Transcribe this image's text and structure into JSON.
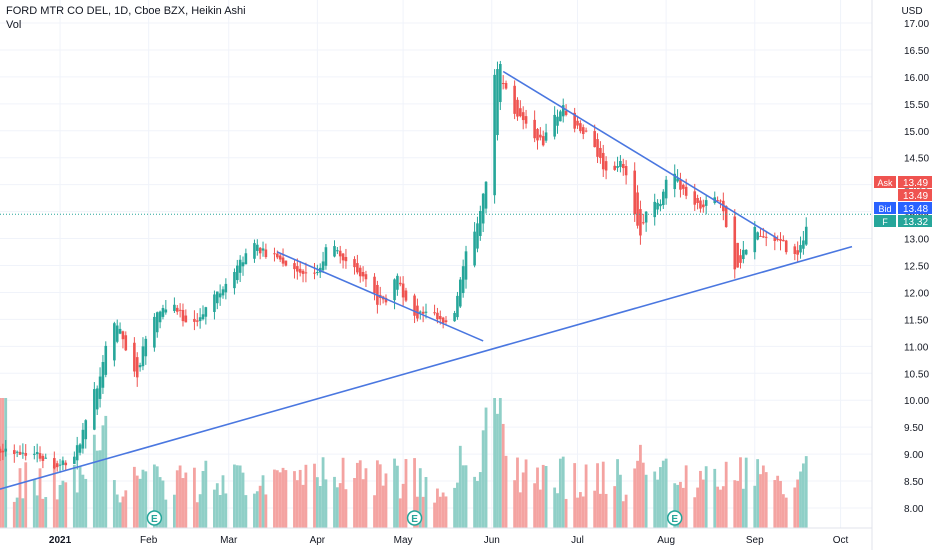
{
  "header": {
    "title": "FORD MTR CO DEL, 1D, Cboe BZX, Heikin Ashi",
    "vol_label": "Vol"
  },
  "colors": {
    "up": "#26a69a",
    "down": "#ef5350",
    "vol_up": "#8fcfc7",
    "vol_down": "#f4a3a1",
    "trendline": "#4a77e0",
    "ask": "#ef5350",
    "bid": "#2962ff",
    "last": "#26a69a",
    "axis_text": "#131722"
  },
  "chart_data": {
    "type": "candlestick",
    "currency": "USD",
    "y_ticks": [
      "17.00",
      "16.50",
      "16.00",
      "15.50",
      "15.00",
      "14.50",
      "14.00",
      "13.50",
      "13.00",
      "12.50",
      "12.00",
      "11.50",
      "11.00",
      "10.50",
      "10.00",
      "9.50",
      "9.00",
      "8.50",
      "8.00"
    ],
    "ylim": [
      7.8,
      17.1
    ],
    "x_ticks": [
      {
        "label": "2021",
        "day": 3
      },
      {
        "label": "Feb",
        "day": 34
      },
      {
        "label": "Mar",
        "day": 62
      },
      {
        "label": "Apr",
        "day": 93
      },
      {
        "label": "May",
        "day": 123
      },
      {
        "label": "Jun",
        "day": 154
      },
      {
        "label": "Jul",
        "day": 184
      },
      {
        "label": "Aug",
        "day": 215
      },
      {
        "label": "Sep",
        "day": 246
      },
      {
        "label": "Oct",
        "day": 276
      }
    ],
    "xlim": [
      -18,
      287
    ],
    "keypoints": [
      [
        -18,
        9.1
      ],
      [
        -5,
        9.0
      ],
      [
        2,
        8.8
      ],
      [
        8,
        8.9
      ],
      [
        12,
        9.5
      ],
      [
        15,
        10.0
      ],
      [
        18,
        10.6
      ],
      [
        20,
        11.3
      ],
      [
        24,
        11.3
      ],
      [
        27,
        10.9
      ],
      [
        30,
        10.5
      ],
      [
        33,
        11.1
      ],
      [
        37,
        11.6
      ],
      [
        42,
        11.8
      ],
      [
        47,
        11.5
      ],
      [
        52,
        11.5
      ],
      [
        57,
        11.9
      ],
      [
        62,
        12.2
      ],
      [
        66,
        12.5
      ],
      [
        71,
        12.9
      ],
      [
        75,
        12.7
      ],
      [
        79,
        12.7
      ],
      [
        83,
        12.5
      ],
      [
        88,
        12.3
      ],
      [
        94,
        12.4
      ],
      [
        97,
        12.9
      ],
      [
        101,
        12.7
      ],
      [
        105,
        12.5
      ],
      [
        110,
        12.3
      ],
      [
        114,
        11.9
      ],
      [
        117,
        11.8
      ],
      [
        121,
        12.3
      ],
      [
        123,
        12.0
      ],
      [
        126,
        11.6
      ],
      [
        129,
        11.6
      ],
      [
        133,
        11.6
      ],
      [
        138,
        11.4
      ],
      [
        141,
        11.6
      ],
      [
        145,
        12.6
      ],
      [
        149,
        13.2
      ],
      [
        152,
        14.0
      ],
      [
        155,
        15.6
      ],
      [
        157,
        16.1
      ],
      [
        160,
        15.6
      ],
      [
        164,
        15.3
      ],
      [
        168,
        15.0
      ],
      [
        172,
        14.8
      ],
      [
        176,
        15.2
      ],
      [
        179,
        15.4
      ],
      [
        183,
        15.1
      ],
      [
        188,
        14.9
      ],
      [
        191,
        14.6
      ],
      [
        195,
        14.2
      ],
      [
        199,
        14.4
      ],
      [
        203,
        13.9
      ],
      [
        206,
        13.1
      ],
      [
        209,
        13.6
      ],
      [
        213,
        13.6
      ],
      [
        216,
        14.3
      ],
      [
        220,
        14.0
      ],
      [
        224,
        13.7
      ],
      [
        227,
        13.6
      ],
      [
        231,
        13.8
      ],
      [
        235,
        13.6
      ],
      [
        238,
        12.8
      ],
      [
        240,
        12.5
      ],
      [
        243,
        12.8
      ],
      [
        246,
        13.1
      ],
      [
        250,
        13.0
      ],
      [
        253,
        13.0
      ],
      [
        256,
        12.9
      ],
      [
        260,
        12.7
      ],
      [
        263,
        12.9
      ],
      [
        265,
        13.3
      ]
    ],
    "last_day": 265,
    "volume_max_millions": 110,
    "earnings_markers": [
      {
        "label": "E",
        "day": 36
      },
      {
        "label": "E",
        "day": 127
      },
      {
        "label": "E",
        "day": 218
      }
    ],
    "trendlines": [
      {
        "name": "support",
        "from": [
          -18,
          8.35
        ],
        "to": [
          280,
          12.85
        ]
      },
      {
        "name": "resistance-1",
        "from": [
          79,
          12.75
        ],
        "to": [
          151,
          11.1
        ]
      },
      {
        "name": "resistance-2",
        "from": [
          158,
          16.1
        ],
        "to": [
          254,
          13.0
        ]
      }
    ],
    "price_labels": [
      {
        "tag": "Ask",
        "value": "13.49",
        "y": 13.49,
        "role": "ask"
      },
      {
        "tag": "",
        "value": "13.49",
        "y": 13.49,
        "role": "ask-extra"
      },
      {
        "tag": "Bid",
        "value": "13.48",
        "y": 13.48,
        "role": "bid"
      },
      {
        "tag": "F",
        "value": "13.32",
        "y": 13.32,
        "role": "last"
      }
    ]
  }
}
